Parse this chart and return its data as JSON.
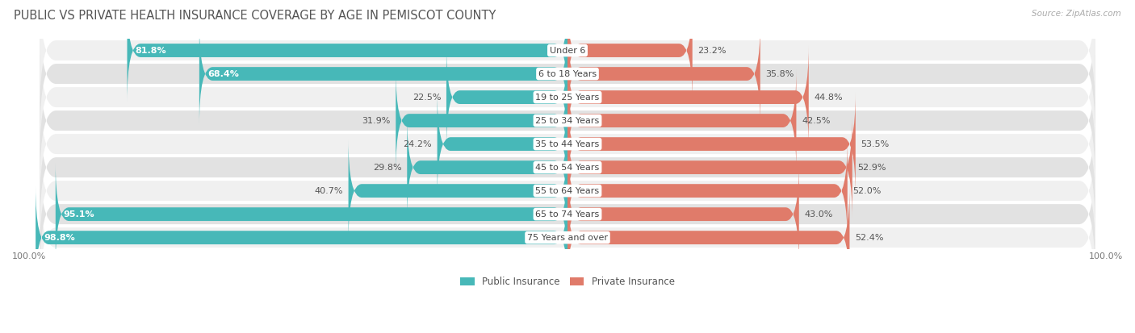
{
  "title": "PUBLIC VS PRIVATE HEALTH INSURANCE COVERAGE BY AGE IN PEMISCOT COUNTY",
  "source": "Source: ZipAtlas.com",
  "categories": [
    "Under 6",
    "6 to 18 Years",
    "19 to 25 Years",
    "25 to 34 Years",
    "35 to 44 Years",
    "45 to 54 Years",
    "55 to 64 Years",
    "65 to 74 Years",
    "75 Years and over"
  ],
  "public_values": [
    81.8,
    68.4,
    22.5,
    31.9,
    24.2,
    29.8,
    40.7,
    95.1,
    98.8
  ],
  "private_values": [
    23.2,
    35.8,
    44.8,
    42.5,
    53.5,
    52.9,
    52.0,
    43.0,
    52.4
  ],
  "public_color": "#47b8b8",
  "private_color": "#e07b6a",
  "row_bg_light": "#f0f0f0",
  "row_bg_dark": "#e2e2e2",
  "max_value": 100.0,
  "title_fontsize": 10.5,
  "label_fontsize": 8.0,
  "value_fontsize": 8.0,
  "legend_fontsize": 8.5,
  "source_fontsize": 7.5,
  "background_color": "#ffffff"
}
